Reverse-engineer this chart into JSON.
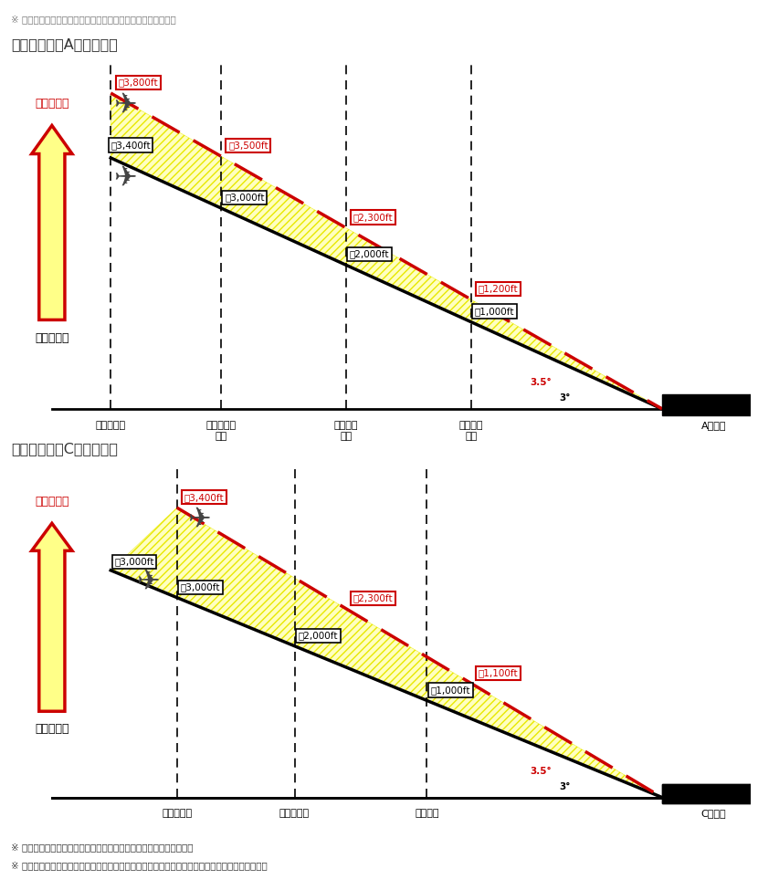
{
  "top_note": "※ 図はあくまでイメージであり、実際の縮尺とは異なります。",
  "section_A_title": "＜イメージ（A滑走路）＞",
  "section_C_title": "＜イメージ（C滑走路）＞",
  "bottom_note1": "※ 気象条件等により、上図点線のような飛行となる場合もあります。",
  "bottom_note2": "※ 飛行高度の引き上げを安定的に実現するため、航空保安施設の整備に関する調整を実施します。",
  "good_weather": "（好天時）",
  "bad_weather": "（悪天時）",
  "runway_A": "A滑走路",
  "runway_C": "C滑走路",
  "A_stations": [
    "中野駅付近",
    "中野新橋駅\n付近",
    "恵比寿駅\n付近",
    "立会川駅\n付近"
  ],
  "C_stations": [
    "新宿駅付近",
    "広尾駅付近",
    "大井埠頭"
  ],
  "bg_color": "#ffffff",
  "red_color": "#cc0000",
  "yellow_fill": "#ffffc0",
  "yellow_hatch": "#e8e800"
}
